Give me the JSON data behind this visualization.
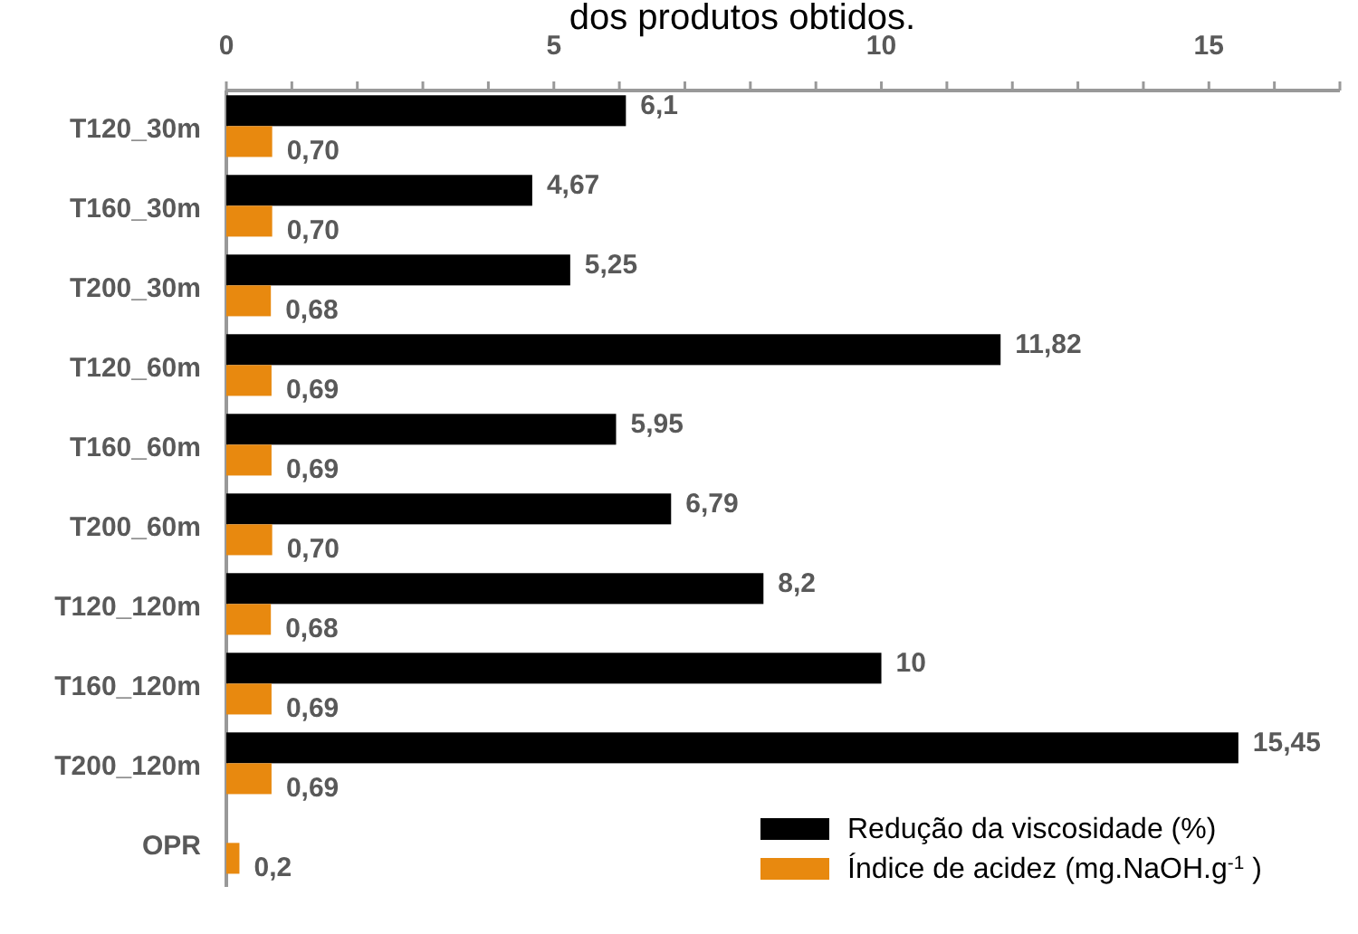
{
  "chart_data": {
    "type": "bar",
    "orientation": "horizontal",
    "title": "dos produtos obtidos.",
    "categories": [
      "T120_30m",
      "T160_30m",
      "T200_30m",
      "T120_60m",
      "T160_60m",
      "T200_60m",
      "T120_120m",
      "T160_120m",
      "T200_120m",
      "OPR"
    ],
    "series": [
      {
        "name": "Redução da viscosidade (%)",
        "color": "#000000",
        "values": [
          6.1,
          4.67,
          5.25,
          11.82,
          5.95,
          6.79,
          8.2,
          10,
          15.45,
          null
        ],
        "value_labels": [
          "6,1",
          "4,67",
          "5,25",
          "11,82",
          "5,95",
          "6,79",
          "8,2",
          "10",
          "15,45",
          null
        ]
      },
      {
        "name": "Índice de acidez (mg.NaOH.g$^{-1}$ )",
        "color": "#e8890f",
        "values": [
          0.7,
          0.7,
          0.68,
          0.69,
          0.69,
          0.7,
          0.68,
          0.69,
          0.69,
          0.2
        ],
        "value_labels": [
          "0,70",
          "0,70",
          "0,68",
          "0,69",
          "0,69",
          "0,70",
          "0,68",
          "0,69",
          "0,69",
          "0,2"
        ]
      }
    ],
    "xlim": [
      0,
      17
    ],
    "xticks": [
      0,
      {
        "value": 1,
        "label": null
      },
      {
        "value": 2,
        "label": null
      },
      {
        "value": 3,
        "label": null
      },
      {
        "value": 4,
        "label": null
      },
      5,
      {
        "value": 6,
        "label": null
      },
      {
        "value": 7,
        "label": null
      },
      {
        "value": 8,
        "label": null
      },
      {
        "value": 9,
        "label": null
      },
      10,
      {
        "value": 11,
        "label": null
      },
      {
        "value": 12,
        "label": null
      },
      {
        "value": 13,
        "label": null
      },
      {
        "value": 14,
        "label": null
      },
      15,
      {
        "value": 16,
        "label": null
      },
      {
        "value": 17,
        "label": null
      }
    ],
    "legend": "bottom right",
    "grid": false
  }
}
